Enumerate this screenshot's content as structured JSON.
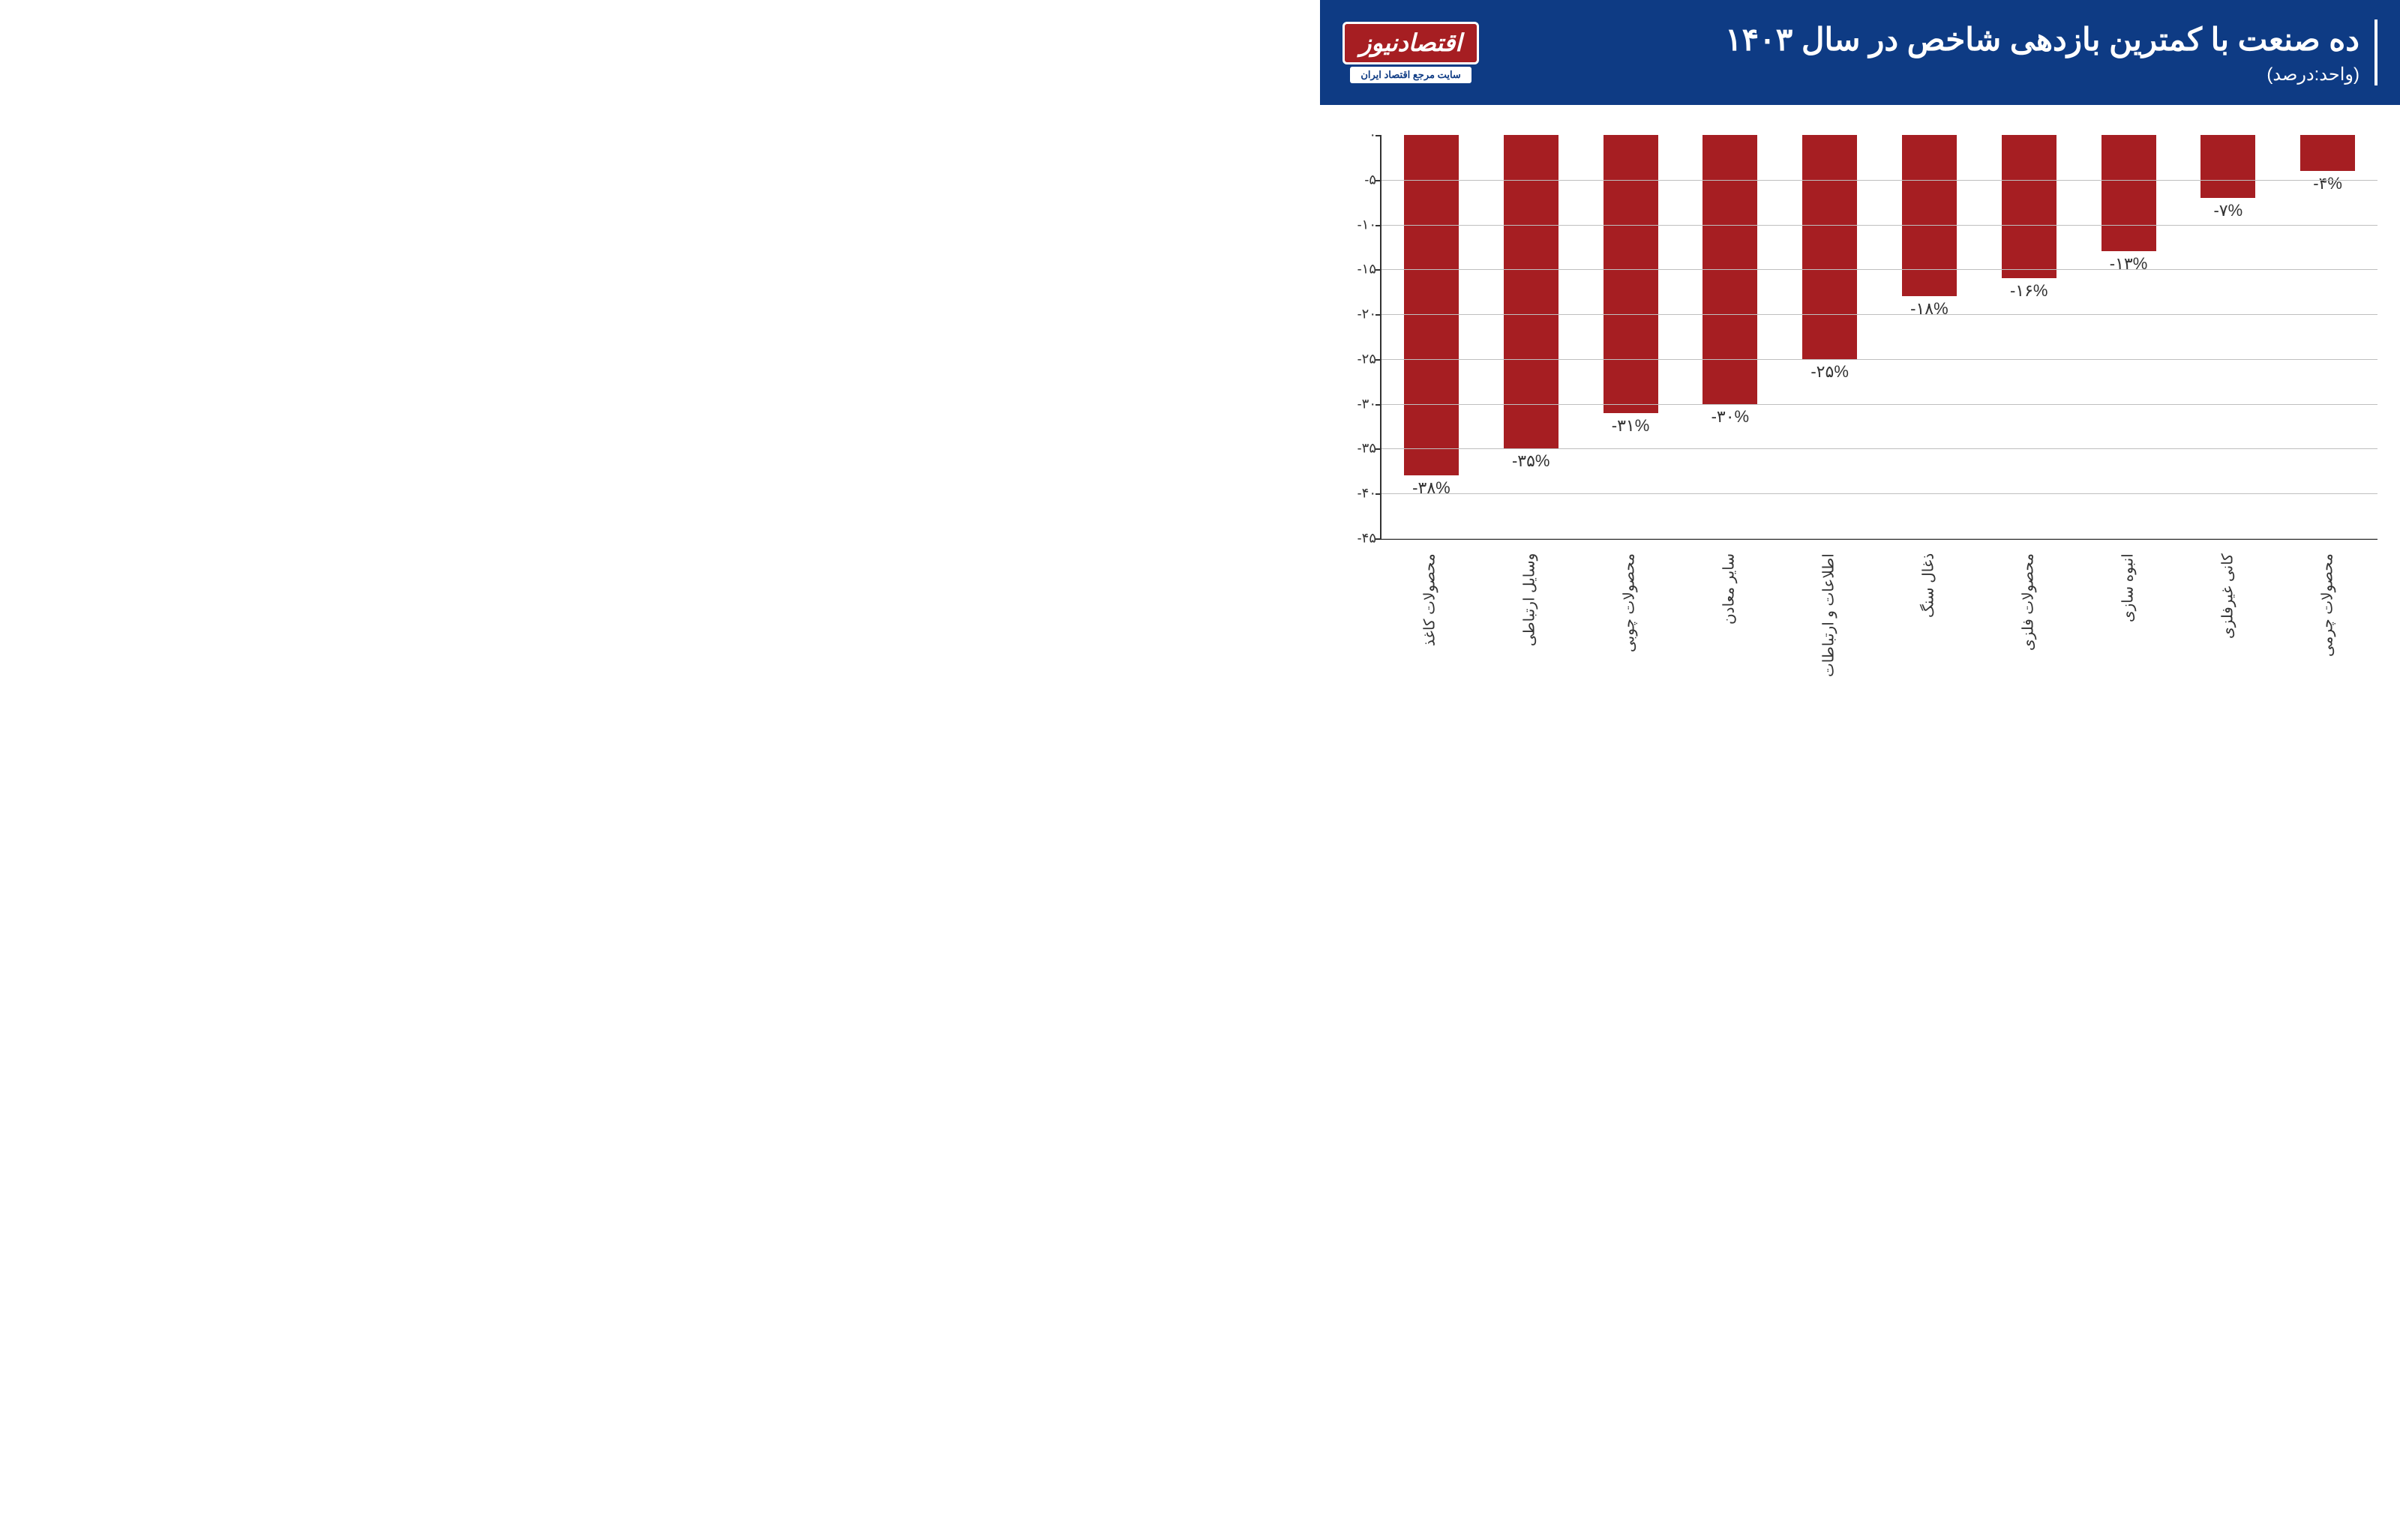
{
  "header": {
    "title": "ده صنعت با کمترین بازدهی شاخص در سال ۱۴۰۳",
    "subtitle": "(واحد:درصد)",
    "bg_color": "#0e3b84",
    "text_color": "#ffffff",
    "logo_text": "اقتصادنیوز",
    "logo_tagline": "سایت مرجع اقتصاد ایران",
    "logo_bg": "#a61e22"
  },
  "chart": {
    "type": "bar",
    "ylim": [
      -45,
      0
    ],
    "ytick_step": 5,
    "yticks": [
      {
        "v": 0,
        "label": "۰"
      },
      {
        "v": -5,
        "label": "-۵"
      },
      {
        "v": -10,
        "label": "-۱۰"
      },
      {
        "v": -15,
        "label": "-۱۵"
      },
      {
        "v": -20,
        "label": "-۲۰"
      },
      {
        "v": -25,
        "label": "-۲۵"
      },
      {
        "v": -30,
        "label": "-۳۰"
      },
      {
        "v": -35,
        "label": "-۳۵"
      },
      {
        "v": -40,
        "label": "-۴۰"
      },
      {
        "v": -45,
        "label": "-۴۵"
      }
    ],
    "bar_color": "#a61e22",
    "grid_color": "#bfbfbf",
    "axis_color": "#333333",
    "background_color": "#ffffff",
    "bar_width_ratio": 0.55,
    "bars": [
      {
        "category": "محصولات کاغذ",
        "value": -38,
        "label": "-۳۸%"
      },
      {
        "category": "وسایل ارتباطی",
        "value": -35,
        "label": "-۳۵%"
      },
      {
        "category": "محصولات چوبی",
        "value": -31,
        "label": "-۳۱%"
      },
      {
        "category": "سایر معادن",
        "value": -30,
        "label": "-۳۰%"
      },
      {
        "category": "اطلاعات و ارتباطات",
        "value": -25,
        "label": "-۲۵%"
      },
      {
        "category": "ذغال سنگ",
        "value": -18,
        "label": "-۱۸%"
      },
      {
        "category": "محصولات فلزی",
        "value": -16,
        "label": "-۱۶%"
      },
      {
        "category": "انبوه سازی",
        "value": -13,
        "label": "-۱۳%"
      },
      {
        "category": "کانی غیرفلزی",
        "value": -7,
        "label": "-۷%"
      },
      {
        "category": "محصولات چرمی",
        "value": -4,
        "label": "-۴%"
      }
    ]
  }
}
